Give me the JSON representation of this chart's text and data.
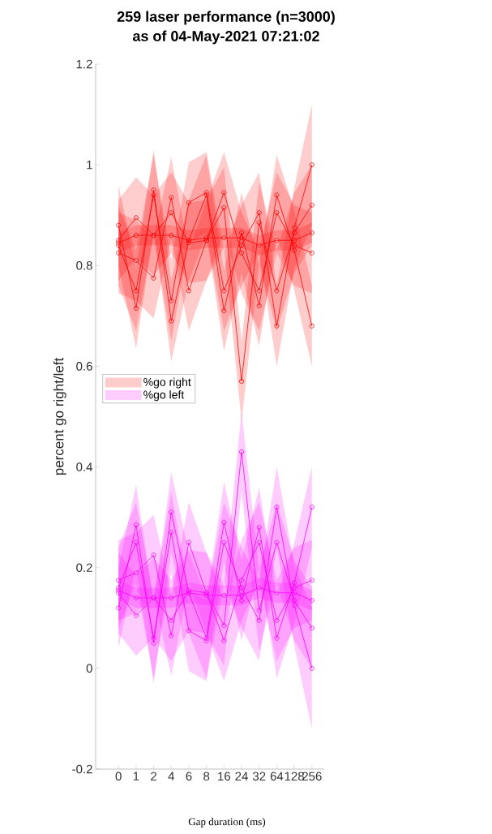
{
  "chart_data": {
    "type": "line",
    "title": "259 laser performance (n=3000)",
    "subtitle": "as of 04-May-2021 07:21:02",
    "xlabel": "Gap duration (ms)",
    "ylabel": "percent go right/left",
    "categories": [
      "0",
      "1",
      "2",
      "4",
      "6",
      "8",
      "16",
      "24",
      "32",
      "64",
      "128",
      "256"
    ],
    "ylim": [
      -0.2,
      1.2
    ],
    "yticks": [
      -0.2,
      0,
      0.2,
      0.4,
      0.6,
      0.8,
      1,
      1.2
    ],
    "marker": "circle",
    "legend": "left",
    "series": [
      {
        "name": "%go right",
        "color": "#ff0000",
        "values": [
          0.845,
          0.86,
          0.86,
          0.86,
          0.85,
          0.855,
          0.855,
          0.855,
          0.84,
          0.85,
          0.85,
          0.865
        ],
        "lower": [
          0.825,
          0.84,
          0.84,
          0.84,
          0.83,
          0.835,
          0.835,
          0.835,
          0.82,
          0.83,
          0.83,
          0.845
        ],
        "upper": [
          0.865,
          0.88,
          0.88,
          0.88,
          0.87,
          0.875,
          0.875,
          0.875,
          0.86,
          0.87,
          0.87,
          0.885
        ]
      },
      {
        "color": "#fe0101",
        "values": [
          0.88,
          0.715,
          0.95,
          0.69,
          0.85,
          0.94,
          0.71,
          0.865,
          0.72,
          0.94,
          0.83,
          0.68
        ],
        "lower": [
          0.8,
          0.635,
          0.87,
          0.61,
          0.77,
          0.86,
          0.63,
          0.785,
          0.64,
          0.86,
          0.75,
          0.6
        ],
        "upper": [
          0.96,
          0.795,
          1.03,
          0.77,
          0.93,
          1.02,
          0.79,
          0.945,
          0.8,
          1.02,
          0.91,
          0.76
        ]
      },
      {
        "color": "#fd0202",
        "values": [
          0.825,
          0.81,
          0.775,
          0.935,
          0.75,
          0.85,
          0.915,
          0.57,
          0.885,
          0.75,
          0.865,
          0.92
        ],
        "lower": [
          0.745,
          0.73,
          0.695,
          0.855,
          0.67,
          0.77,
          0.835,
          0.49,
          0.805,
          0.67,
          0.785,
          0.84
        ],
        "upper": [
          0.905,
          0.89,
          0.855,
          1.015,
          0.83,
          0.93,
          0.995,
          0.65,
          0.965,
          0.83,
          0.945,
          1.0
        ]
      },
      {
        "color": "#fc0303",
        "values": [
          0.84,
          0.75,
          0.94,
          0.73,
          0.925,
          0.945,
          0.75,
          0.84,
          0.905,
          0.68,
          0.875,
          1.0
        ],
        "lower": [
          0.76,
          0.67,
          0.86,
          0.65,
          0.845,
          0.865,
          0.67,
          0.76,
          0.825,
          0.6,
          0.795,
          0.88
        ],
        "upper": [
          0.92,
          0.83,
          1.02,
          0.81,
          1.005,
          1.025,
          0.83,
          0.92,
          0.985,
          0.76,
          0.955,
          1.12
        ]
      },
      {
        "color": "#fb0404",
        "values": [
          0.85,
          0.895,
          0.86,
          0.905,
          0.845,
          0.85,
          0.945,
          0.825,
          0.75,
          0.905,
          0.84,
          0.825
        ],
        "lower": [
          0.77,
          0.815,
          0.78,
          0.825,
          0.765,
          0.77,
          0.865,
          0.745,
          0.67,
          0.825,
          0.76,
          0.745
        ],
        "upper": [
          0.93,
          0.975,
          0.94,
          0.985,
          0.925,
          0.93,
          1.025,
          0.905,
          0.83,
          0.985,
          0.92,
          0.905
        ]
      },
      {
        "name": "%go left",
        "color": "#ff00ff",
        "values": [
          0.155,
          0.14,
          0.14,
          0.14,
          0.15,
          0.145,
          0.145,
          0.145,
          0.16,
          0.15,
          0.15,
          0.135
        ],
        "lower": [
          0.135,
          0.12,
          0.12,
          0.12,
          0.13,
          0.125,
          0.125,
          0.125,
          0.14,
          0.13,
          0.13,
          0.115
        ],
        "upper": [
          0.175,
          0.16,
          0.16,
          0.16,
          0.17,
          0.165,
          0.165,
          0.165,
          0.18,
          0.17,
          0.17,
          0.155
        ]
      },
      {
        "color": "#fe01fe",
        "values": [
          0.12,
          0.285,
          0.05,
          0.31,
          0.15,
          0.06,
          0.29,
          0.135,
          0.28,
          0.06,
          0.17,
          0.32
        ],
        "lower": [
          0.04,
          0.205,
          -0.03,
          0.23,
          0.07,
          -0.02,
          0.21,
          0.055,
          0.2,
          -0.02,
          0.09,
          0.24
        ],
        "upper": [
          0.2,
          0.365,
          0.13,
          0.39,
          0.23,
          0.14,
          0.37,
          0.215,
          0.36,
          0.14,
          0.25,
          0.4
        ]
      },
      {
        "color": "#fd02fd",
        "values": [
          0.175,
          0.19,
          0.225,
          0.065,
          0.25,
          0.15,
          0.085,
          0.43,
          0.115,
          0.25,
          0.135,
          0.08
        ],
        "lower": [
          0.095,
          0.11,
          0.145,
          -0.015,
          0.17,
          0.07,
          0.005,
          0.35,
          0.035,
          0.17,
          0.055,
          0.0
        ],
        "upper": [
          0.255,
          0.27,
          0.305,
          0.145,
          0.33,
          0.23,
          0.165,
          0.51,
          0.195,
          0.33,
          0.215,
          0.16
        ]
      },
      {
        "color": "#fc03fc",
        "values": [
          0.16,
          0.25,
          0.06,
          0.27,
          0.075,
          0.055,
          0.25,
          0.16,
          0.095,
          0.32,
          0.125,
          0.0
        ],
        "lower": [
          0.08,
          0.17,
          -0.02,
          0.19,
          -0.005,
          -0.025,
          0.17,
          0.08,
          0.015,
          0.24,
          0.045,
          -0.12
        ],
        "upper": [
          0.24,
          0.33,
          0.14,
          0.35,
          0.155,
          0.135,
          0.33,
          0.24,
          0.175,
          0.4,
          0.205,
          0.12
        ]
      },
      {
        "color": "#fb04fb",
        "values": [
          0.15,
          0.105,
          0.14,
          0.095,
          0.155,
          0.15,
          0.055,
          0.175,
          0.25,
          0.095,
          0.16,
          0.175
        ],
        "lower": [
          0.07,
          0.025,
          0.06,
          0.015,
          0.075,
          0.07,
          -0.025,
          0.095,
          0.17,
          0.015,
          0.08,
          0.095
        ],
        "upper": [
          0.23,
          0.185,
          0.22,
          0.175,
          0.235,
          0.23,
          0.135,
          0.255,
          0.33,
          0.175,
          0.24,
          0.255
        ]
      }
    ]
  }
}
